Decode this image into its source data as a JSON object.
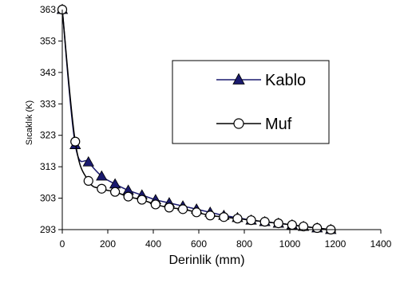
{
  "chart_data": {
    "type": "line",
    "xlabel": "Derinlik (mm)",
    "ylabel": "Sıcaklık (K)",
    "xlim": [
      0,
      1400
    ],
    "ylim": [
      293,
      363
    ],
    "xticks": [
      0,
      200,
      400,
      600,
      800,
      1000,
      1200,
      1400
    ],
    "yticks": [
      293,
      303,
      313,
      323,
      333,
      343,
      353,
      363
    ],
    "grid": false,
    "legend_position": "top-right",
    "series": [
      {
        "name": "Kablo",
        "color": "#1a1a6e",
        "marker": "triangle-filled",
        "x": [
          0,
          57,
          115,
          173,
          232,
          290,
          350,
          410,
          470,
          530,
          590,
          650,
          710,
          770,
          830,
          890,
          950,
          1010,
          1060,
          1120,
          1180
        ],
        "y": [
          363,
          320,
          314.5,
          310,
          307.5,
          305.5,
          304,
          302.5,
          301.5,
          300.5,
          299.5,
          298.5,
          297.5,
          296.8,
          296,
          295.5,
          295,
          294.5,
          294,
          293.5,
          293
        ]
      },
      {
        "name": "Muf",
        "color": "#000000",
        "marker": "circle-open",
        "x": [
          0,
          57,
          115,
          173,
          232,
          290,
          350,
          410,
          470,
          530,
          590,
          650,
          710,
          770,
          830,
          890,
          950,
          1010,
          1060,
          1120,
          1180
        ],
        "y": [
          363,
          321,
          308.5,
          306,
          305,
          303.5,
          302.5,
          301,
          300,
          299.5,
          298.5,
          297.5,
          297,
          296.5,
          296,
          295.5,
          295,
          294.5,
          294,
          293.5,
          293
        ]
      }
    ]
  }
}
